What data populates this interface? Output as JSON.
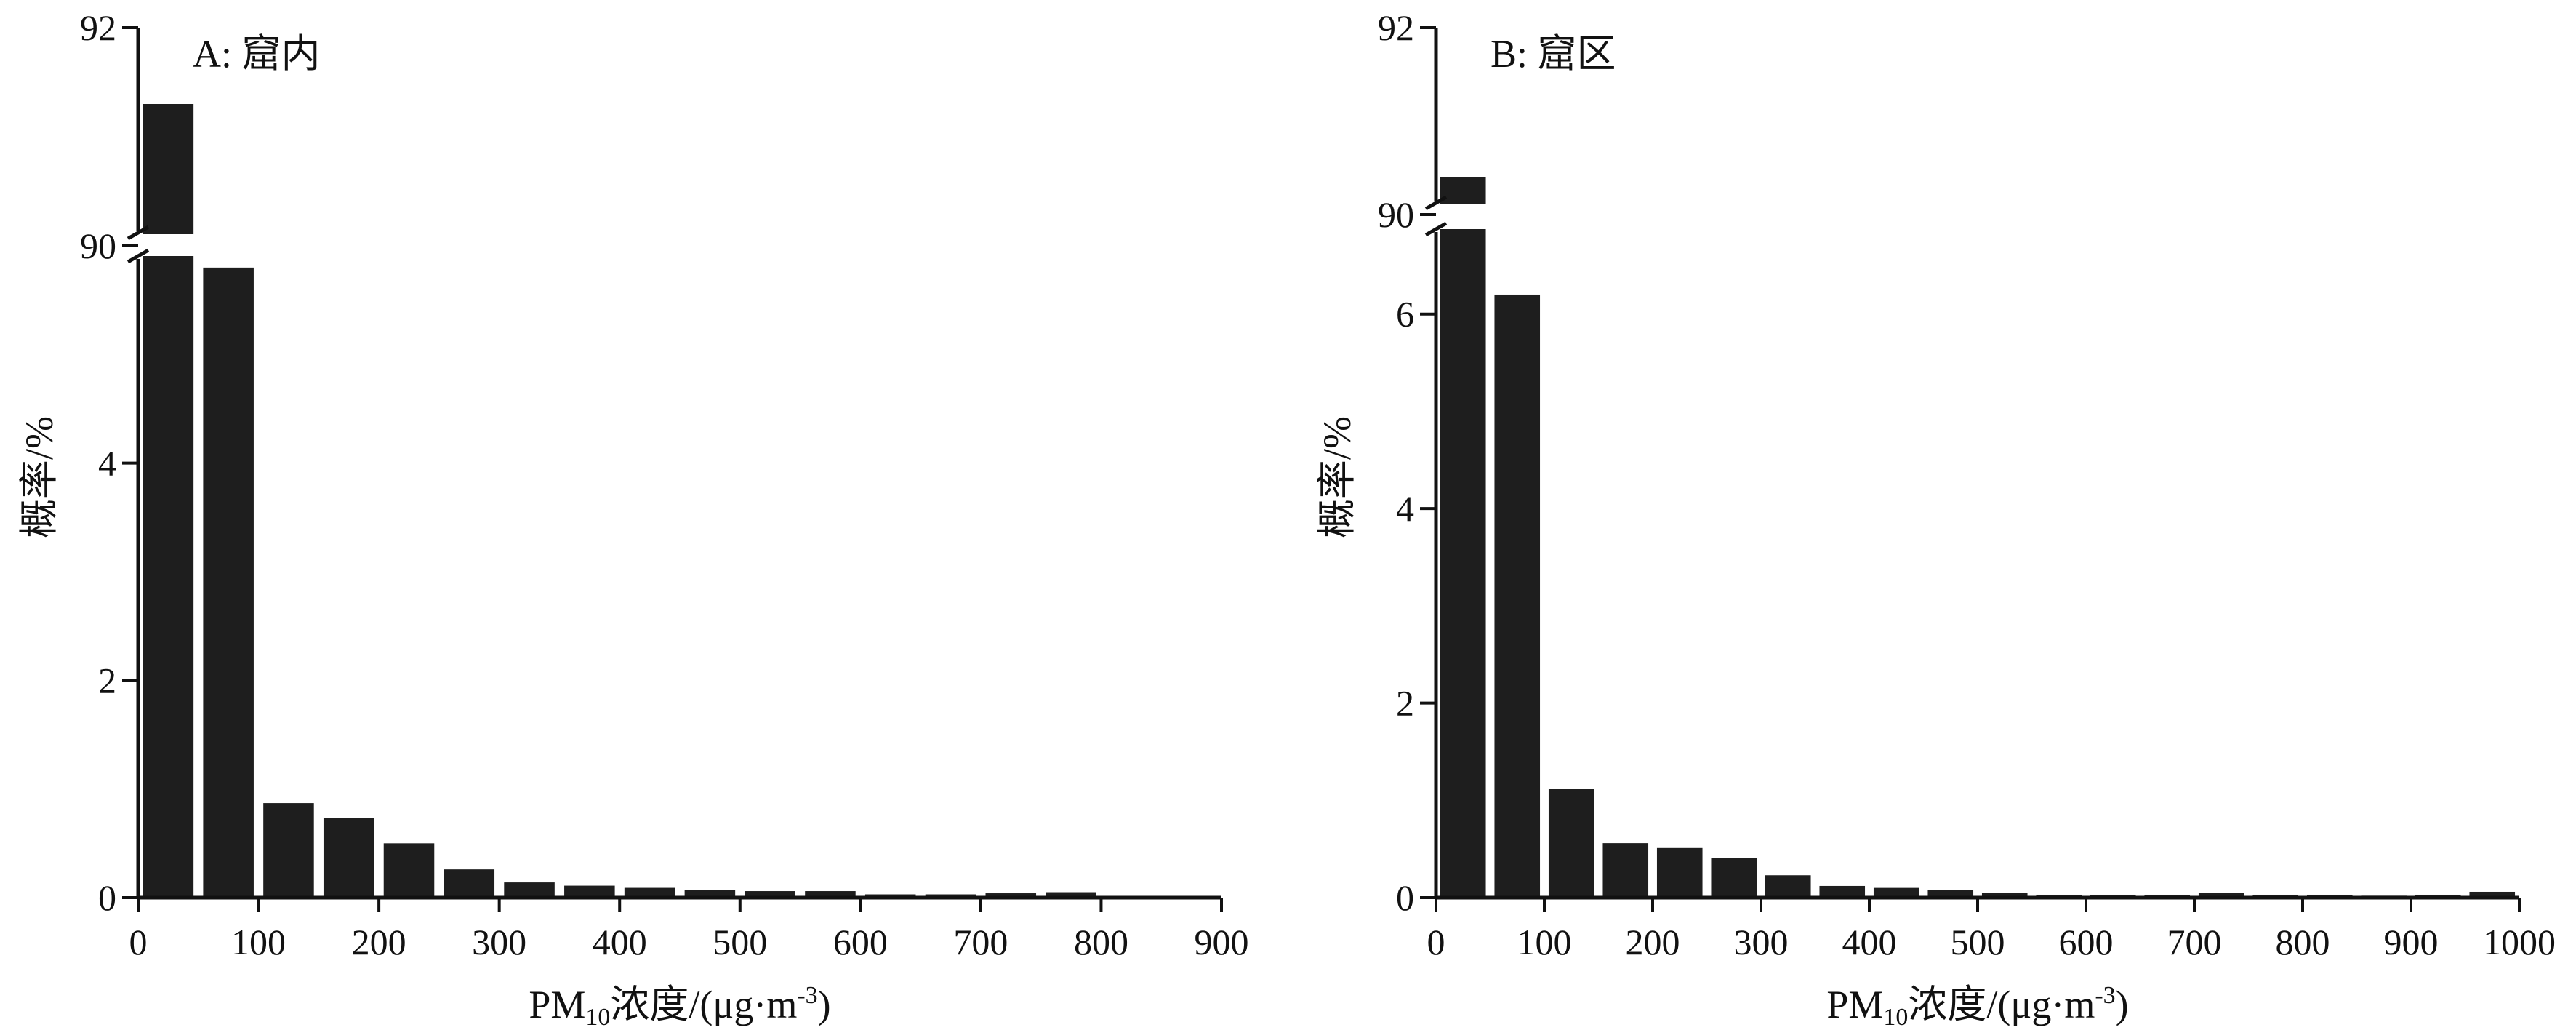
{
  "chart_data": [
    {
      "type": "bar",
      "title": "A: 窟内",
      "xlabel": {
        "prefix": "PM",
        "sub": "10",
        "main": "浓度/(μg·m",
        "sup": "-3",
        "end": ")"
      },
      "ylabel": "概率/%",
      "xlim": [
        0,
        900
      ],
      "xticks": [
        "0",
        "100",
        "200",
        "300",
        "400",
        "500",
        "600",
        "700",
        "800",
        "900"
      ],
      "ylim_lower": [
        0,
        6
      ],
      "ylim_upper": [
        90,
        92
      ],
      "yticks_lower": [
        "0",
        "2",
        "4"
      ],
      "yticks_upper": [
        "90",
        "92"
      ],
      "axis_break": true,
      "grid": false,
      "bin_width": 50,
      "x": [
        25,
        75,
        125,
        175,
        225,
        275,
        325,
        375,
        425,
        475,
        525,
        575,
        625,
        675,
        725,
        775
      ],
      "values": [
        91.3,
        5.8,
        0.87,
        0.73,
        0.5,
        0.26,
        0.14,
        0.11,
        0.09,
        0.07,
        0.06,
        0.06,
        0.03,
        0.03,
        0.04,
        0.05
      ],
      "bar_color": "#1e1e1e"
    },
    {
      "type": "bar",
      "title": "B: 窟区",
      "xlabel": {
        "prefix": "PM",
        "sub": "10",
        "main": "浓度/(μg·m",
        "sup": "-3",
        "end": ")"
      },
      "ylabel": "概率/%",
      "xlim": [
        0,
        1000
      ],
      "xticks": [
        "0",
        "100",
        "200",
        "300",
        "400",
        "500",
        "600",
        "700",
        "800",
        "900",
        "1000"
      ],
      "ylim_lower": [
        0,
        7
      ],
      "ylim_upper": [
        90,
        92
      ],
      "yticks_lower": [
        "0",
        "2",
        "4",
        "6"
      ],
      "yticks_upper": [
        "90",
        "92"
      ],
      "axis_break": true,
      "grid": false,
      "bin_width": 50,
      "x": [
        25,
        75,
        125,
        175,
        225,
        275,
        325,
        375,
        425,
        475,
        525,
        575,
        625,
        675,
        725,
        775,
        825,
        875,
        925,
        975
      ],
      "values": [
        90.4,
        6.2,
        1.12,
        0.56,
        0.51,
        0.41,
        0.23,
        0.12,
        0.1,
        0.08,
        0.05,
        0.03,
        0.03,
        0.03,
        0.05,
        0.03,
        0.03,
        0.02,
        0.03,
        0.06
      ],
      "bar_color": "#1e1e1e"
    }
  ]
}
